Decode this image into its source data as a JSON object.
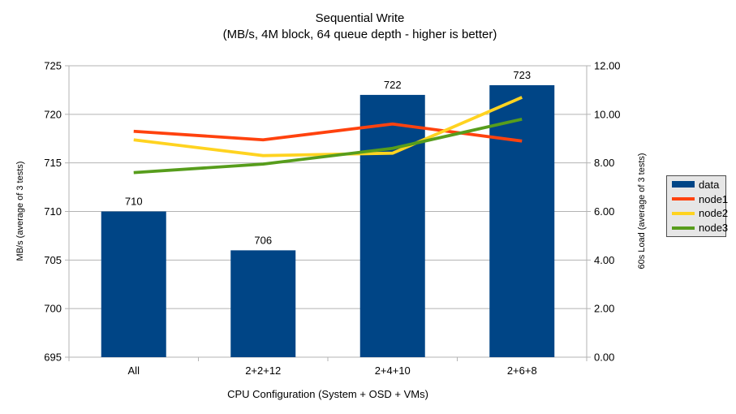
{
  "chart_data": {
    "type": "bar",
    "title": "Sequential Write",
    "subtitle": "(MB/s, 4M block, 64 queue depth - higher is better)",
    "xlabel": "CPU Configuration (System + OSD + VMs)",
    "categories": [
      "All",
      "2+2+12",
      "2+4+10",
      "2+6+8"
    ],
    "bar_series": {
      "name": "data",
      "values": [
        710,
        706,
        722,
        723
      ],
      "labels": [
        "710",
        "706",
        "722",
        "723"
      ],
      "color": "#004586",
      "axis": "left"
    },
    "line_series": [
      {
        "name": "node1",
        "color": "#ff420e",
        "axis": "right",
        "values": [
          9.3,
          8.95,
          9.6,
          8.9
        ]
      },
      {
        "name": "node2",
        "color": "#ffd320",
        "axis": "right",
        "values": [
          8.95,
          8.3,
          8.4,
          10.7
        ]
      },
      {
        "name": "node3",
        "color": "#579d1c",
        "axis": "right",
        "values": [
          7.6,
          7.95,
          8.6,
          9.8
        ]
      }
    ],
    "left_axis": {
      "label": "MB/s (average of 3 tests)",
      "min": 695,
      "max": 725,
      "step": 5,
      "ticks": [
        "725",
        "720",
        "715",
        "710",
        "705",
        "700",
        "695"
      ]
    },
    "right_axis": {
      "label": "60s Load (average of 3 tests)",
      "min": 0,
      "max": 12,
      "step": 2,
      "ticks": [
        "12.00",
        "10.00",
        "8.00",
        "6.00",
        "4.00",
        "2.00",
        "0.00"
      ]
    },
    "legend": {
      "position": "right",
      "entries": [
        "data",
        "node1",
        "node2",
        "node3"
      ]
    },
    "grid": "horizontal",
    "colors": {
      "axis": "#b3b3b3",
      "gridline": "#b3b3b3",
      "background": "#ffffff",
      "legend_bg": "#e6e6e6",
      "legend_border": "#4d4d4d"
    }
  }
}
